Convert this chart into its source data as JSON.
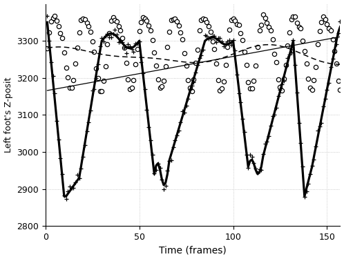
{
  "xlim": [
    0,
    157
  ],
  "ylim": [
    2800,
    3400
  ],
  "xlabel": "Time (frames)",
  "ylabel": "Left foot's Z-posit",
  "yticks": [
    2800,
    2900,
    3000,
    3100,
    3200,
    3300
  ],
  "xticks": [
    0,
    50,
    100,
    150
  ],
  "background_color": "#ffffff",
  "grid_color": "#bbbbbb",
  "n_frames": 157
}
